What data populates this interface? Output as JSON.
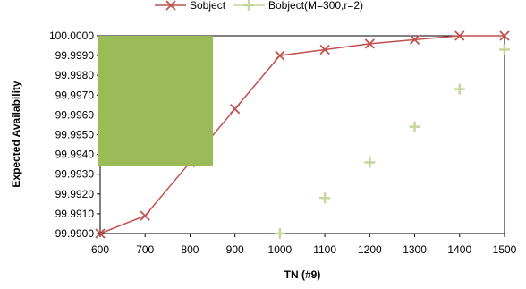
{
  "chart_data": {
    "type": "line",
    "title": "",
    "xlabel": "TN (#9)",
    "ylabel": "Expected  Availability",
    "x": [
      600,
      700,
      800,
      900,
      1000,
      1100,
      1200,
      1300,
      1400,
      1500
    ],
    "xlim": [
      600,
      1500
    ],
    "ylim": [
      99.99,
      100.0
    ],
    "x_ticks": [
      "600",
      "700",
      "800",
      "900",
      "1000",
      "1100",
      "1200",
      "1300",
      "1400",
      "1500"
    ],
    "y_ticks": [
      "99.9900",
      "99.9910",
      "99.9920",
      "99.9930",
      "99.9940",
      "99.9950",
      "99.9960",
      "99.9970",
      "99.9980",
      "99.9990",
      "100.0000"
    ],
    "grid": false,
    "legend_position": "top",
    "series": [
      {
        "name": "Sobject",
        "style": "line-x-markers",
        "color": "#c0504d",
        "values": [
          99.99,
          99.9909,
          99.9936,
          99.9963,
          99.999,
          99.9993,
          99.9996,
          99.9998,
          100.0,
          100.0
        ]
      },
      {
        "name": "Bobject(M=300,r=2)",
        "style": "plus-markers",
        "color": "#c4d79b",
        "values": [
          null,
          null,
          null,
          null,
          99.99,
          99.9918,
          99.9936,
          99.9954,
          99.9973,
          99.9993
        ]
      }
    ]
  },
  "overlay": {
    "color": "#9bbb59"
  }
}
